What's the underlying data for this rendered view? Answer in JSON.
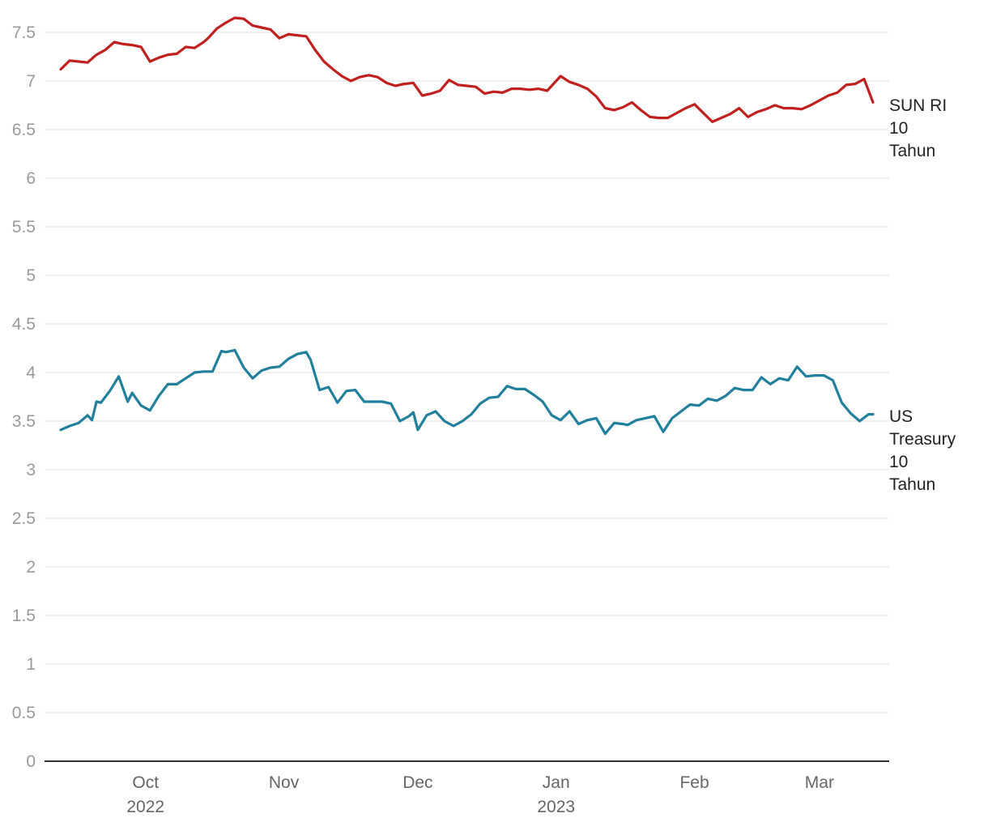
{
  "chart_data": {
    "type": "line",
    "title": "",
    "xlabel": "",
    "ylabel": "",
    "ylim": [
      0,
      7.5
    ],
    "xlim": [
      "2022-09-12",
      "2023-03-13"
    ],
    "grid": true,
    "legend": "end-of-line labels, right",
    "y_ticks": [
      "0",
      "0.5",
      "1",
      "1.5",
      "2",
      "2.5",
      "3",
      "3.5",
      "4",
      "4.5",
      "5",
      "5.5",
      "6",
      "6.5",
      "7",
      "7.5"
    ],
    "x_ticks": [
      {
        "date": "2022-10-01",
        "label": "Oct",
        "sublabel": "2022"
      },
      {
        "date": "2022-11-01",
        "label": "Nov",
        "sublabel": ""
      },
      {
        "date": "2022-12-01",
        "label": "Dec",
        "sublabel": ""
      },
      {
        "date": "2023-01-01",
        "label": "Jan",
        "sublabel": "2023"
      },
      {
        "date": "2023-02-01",
        "label": "Feb",
        "sublabel": ""
      },
      {
        "date": "2023-03-01",
        "label": "Mar",
        "sublabel": ""
      }
    ],
    "series": [
      {
        "name": "SUN RI 10 Tahun",
        "label_lines": [
          "SUN RI",
          "10",
          "Tahun"
        ],
        "color": "#c0211f",
        "x": [
          "2022-09-12",
          "2022-09-14",
          "2022-09-16",
          "2022-09-18",
          "2022-09-20",
          "2022-09-22",
          "2022-09-24",
          "2022-09-26",
          "2022-09-28",
          "2022-09-30",
          "2022-10-02",
          "2022-10-04",
          "2022-10-06",
          "2022-10-08",
          "2022-10-10",
          "2022-10-12",
          "2022-10-14",
          "2022-10-15",
          "2022-10-17",
          "2022-10-19",
          "2022-10-21",
          "2022-10-23",
          "2022-10-25",
          "2022-10-27",
          "2022-10-29",
          "2022-10-31",
          "2022-11-02",
          "2022-11-04",
          "2022-11-06",
          "2022-11-08",
          "2022-11-10",
          "2022-11-12",
          "2022-11-14",
          "2022-11-16",
          "2022-11-18",
          "2022-11-20",
          "2022-11-22",
          "2022-11-24",
          "2022-11-26",
          "2022-11-28",
          "2022-11-30",
          "2022-12-02",
          "2022-12-04",
          "2022-12-06",
          "2022-12-08",
          "2022-12-10",
          "2022-12-12",
          "2022-12-14",
          "2022-12-16",
          "2022-12-18",
          "2022-12-20",
          "2022-12-22",
          "2022-12-24",
          "2022-12-26",
          "2022-12-28",
          "2022-12-30",
          "2023-01-02",
          "2023-01-04",
          "2023-01-06",
          "2023-01-08",
          "2023-01-10",
          "2023-01-12",
          "2023-01-14",
          "2023-01-16",
          "2023-01-18",
          "2023-01-20",
          "2023-01-22",
          "2023-01-24",
          "2023-01-26",
          "2023-01-28",
          "2023-01-30",
          "2023-02-01",
          "2023-02-03",
          "2023-02-05",
          "2023-02-07",
          "2023-02-09",
          "2023-02-11",
          "2023-02-13",
          "2023-02-15",
          "2023-02-17",
          "2023-02-19",
          "2023-02-21",
          "2023-02-23",
          "2023-02-25",
          "2023-02-27",
          "2023-03-01",
          "2023-03-03",
          "2023-03-05",
          "2023-03-07",
          "2023-03-09",
          "2023-03-11",
          "2023-03-13"
        ],
        "values": [
          7.12,
          7.21,
          7.2,
          7.19,
          7.27,
          7.32,
          7.4,
          7.38,
          7.37,
          7.35,
          7.2,
          7.24,
          7.27,
          7.28,
          7.35,
          7.34,
          7.4,
          7.44,
          7.54,
          7.6,
          7.65,
          7.64,
          7.57,
          7.55,
          7.53,
          7.44,
          7.48,
          7.47,
          7.46,
          7.32,
          7.2,
          7.12,
          7.05,
          7.0,
          7.04,
          7.06,
          7.04,
          6.98,
          6.95,
          6.97,
          6.98,
          6.85,
          6.87,
          6.9,
          7.01,
          6.96,
          6.95,
          6.94,
          6.87,
          6.89,
          6.88,
          6.92,
          6.92,
          6.91,
          6.92,
          6.9,
          7.05,
          6.99,
          6.96,
          6.92,
          6.84,
          6.72,
          6.7,
          6.73,
          6.78,
          6.7,
          6.63,
          6.62,
          6.62,
          6.67,
          6.72,
          6.76,
          6.67,
          6.58,
          6.62,
          6.66,
          6.72,
          6.63,
          6.68,
          6.71,
          6.75,
          6.72,
          6.72,
          6.71,
          6.75,
          6.8,
          6.85,
          6.88,
          6.96,
          6.97,
          7.02,
          6.78
        ]
      },
      {
        "name": "US Treasury 10 Tahun",
        "label_lines": [
          "US",
          "Treasury",
          "10",
          "Tahun"
        ],
        "color": "#22809c",
        "x": [
          "2022-09-12",
          "2022-09-14",
          "2022-09-16",
          "2022-09-18",
          "2022-09-19",
          "2022-09-20",
          "2022-09-21",
          "2022-09-23",
          "2022-09-25",
          "2022-09-27",
          "2022-09-28",
          "2022-09-30",
          "2022-10-02",
          "2022-10-04",
          "2022-10-06",
          "2022-10-08",
          "2022-10-10",
          "2022-10-12",
          "2022-10-14",
          "2022-10-16",
          "2022-10-18",
          "2022-10-19",
          "2022-10-21",
          "2022-10-23",
          "2022-10-25",
          "2022-10-27",
          "2022-10-29",
          "2022-10-31",
          "2022-11-02",
          "2022-11-04",
          "2022-11-06",
          "2022-11-07",
          "2022-11-09",
          "2022-11-11",
          "2022-11-13",
          "2022-11-15",
          "2022-11-17",
          "2022-11-19",
          "2022-11-21",
          "2022-11-23",
          "2022-11-25",
          "2022-11-27",
          "2022-11-29",
          "2022-11-30",
          "2022-12-01",
          "2022-12-03",
          "2022-12-05",
          "2022-12-07",
          "2022-12-09",
          "2022-12-11",
          "2022-12-13",
          "2022-12-15",
          "2022-12-17",
          "2022-12-19",
          "2022-12-21",
          "2022-12-23",
          "2022-12-25",
          "2022-12-27",
          "2022-12-29",
          "2022-12-31",
          "2023-01-02",
          "2023-01-04",
          "2023-01-06",
          "2023-01-08",
          "2023-01-10",
          "2023-01-12",
          "2023-01-14",
          "2023-01-16",
          "2023-01-17",
          "2023-01-19",
          "2023-01-21",
          "2023-01-23",
          "2023-01-25",
          "2023-01-27",
          "2023-01-29",
          "2023-01-31",
          "2023-02-02",
          "2023-02-04",
          "2023-02-06",
          "2023-02-08",
          "2023-02-10",
          "2023-02-12",
          "2023-02-14",
          "2023-02-16",
          "2023-02-18",
          "2023-02-20",
          "2023-02-22",
          "2023-02-24",
          "2023-02-26",
          "2023-02-28",
          "2023-03-02",
          "2023-03-04",
          "2023-03-06",
          "2023-03-08",
          "2023-03-10",
          "2023-03-12",
          "2023-03-13"
        ],
        "values": [
          3.41,
          3.45,
          3.48,
          3.56,
          3.51,
          3.7,
          3.69,
          3.81,
          3.96,
          3.7,
          3.79,
          3.66,
          3.61,
          3.76,
          3.88,
          3.88,
          3.94,
          4.0,
          4.01,
          4.01,
          4.22,
          4.21,
          4.23,
          4.05,
          3.94,
          4.02,
          4.05,
          4.06,
          4.14,
          4.19,
          4.21,
          4.13,
          3.82,
          3.85,
          3.69,
          3.81,
          3.82,
          3.7,
          3.7,
          3.7,
          3.68,
          3.5,
          3.55,
          3.59,
          3.41,
          3.56,
          3.6,
          3.5,
          3.45,
          3.5,
          3.57,
          3.68,
          3.74,
          3.75,
          3.86,
          3.83,
          3.83,
          3.77,
          3.7,
          3.56,
          3.51,
          3.6,
          3.47,
          3.51,
          3.53,
          3.37,
          3.48,
          3.47,
          3.46,
          3.51,
          3.53,
          3.55,
          3.39,
          3.53,
          3.6,
          3.67,
          3.66,
          3.73,
          3.71,
          3.76,
          3.84,
          3.82,
          3.82,
          3.95,
          3.88,
          3.94,
          3.92,
          4.06,
          3.96,
          3.97,
          3.97,
          3.92,
          3.69,
          3.58,
          3.5,
          3.57,
          3.57
        ]
      }
    ]
  }
}
